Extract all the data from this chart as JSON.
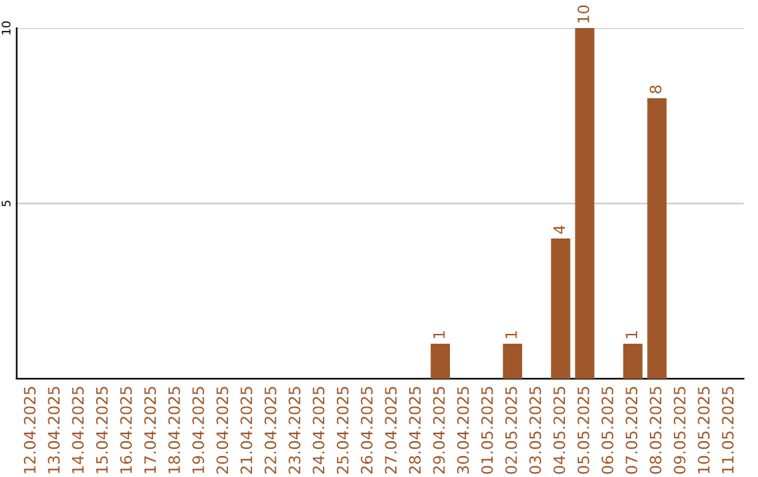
{
  "chart_data": {
    "type": "bar",
    "categories": [
      "12.04.2025",
      "13.04.2025",
      "14.04.2025",
      "15.04.2025",
      "16.04.2025",
      "17.04.2025",
      "18.04.2025",
      "19.04.2025",
      "20.04.2025",
      "21.04.2025",
      "22.04.2025",
      "23.04.2025",
      "24.04.2025",
      "25.04.2025",
      "26.04.2025",
      "27.04.2025",
      "28.04.2025",
      "29.04.2025",
      "30.04.2025",
      "01.05.2025",
      "02.05.2025",
      "03.05.2025",
      "04.05.2025",
      "05.05.2025",
      "06.05.2025",
      "07.05.2025",
      "08.05.2025",
      "09.05.2025",
      "10.05.2025",
      "11.05.2025"
    ],
    "values": [
      0,
      0,
      0,
      0,
      0,
      0,
      0,
      0,
      0,
      0,
      0,
      0,
      0,
      0,
      0,
      0,
      0,
      1,
      0,
      0,
      1,
      0,
      4,
      10,
      0,
      1,
      8,
      0,
      0,
      0
    ],
    "value_labels": [
      null,
      null,
      null,
      null,
      null,
      null,
      null,
      null,
      null,
      null,
      null,
      null,
      null,
      null,
      null,
      null,
      null,
      "1",
      null,
      null,
      "1",
      null,
      "4",
      "10",
      null,
      "1",
      "8",
      null,
      null,
      null
    ],
    "color": "#a0582a",
    "ylim": [
      0,
      10
    ],
    "yticks": [
      5,
      10
    ],
    "grid": "y"
  }
}
